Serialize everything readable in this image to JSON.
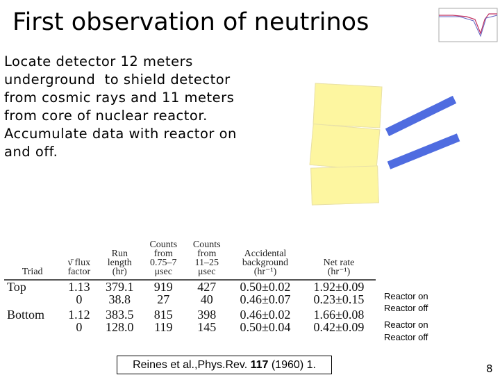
{
  "slide": {
    "title": "First observation of neutrinos",
    "body_lines": [
      "Locate detector 12 meters",
      "underground  to shield detector",
      "from cosmic rays and 11 meters",
      "from core of nuclear reactor.",
      "Accumulate data with reactor on",
      "and off."
    ],
    "table": {
      "headers": [
        "Triad",
        "ν̄ flux\nfactor",
        "Run\nlength\n(hr)",
        "Counts\nfrom\n0.75–7\nμsec",
        "Counts\nfrom\n11–25\nμsec",
        "Accidental\nbackground\n(hr⁻¹)",
        "Net rate\n(hr⁻¹)"
      ],
      "rows": [
        {
          "triad": "Top",
          "cells": [
            "1.13",
            "379.1",
            "919",
            "427",
            "0.50±0.02",
            "1.92±0.09"
          ]
        },
        {
          "cells": [
            "0",
            "38.8",
            "27",
            "40",
            "0.46±0.07",
            "0.23±0.15"
          ]
        },
        {
          "triad": "Bottom",
          "cells": [
            "1.12",
            "383.5",
            "815",
            "398",
            "0.46±0.02",
            "1.66±0.08"
          ]
        },
        {
          "cells": [
            "0",
            "128.0",
            "119",
            "145",
            "0.50±0.04",
            "0.42±0.09"
          ]
        }
      ]
    },
    "reactor_labels": [
      "Reactor on",
      "Reactor off",
      "Reactor on",
      "Reactor off"
    ],
    "citation": {
      "before": "Reines et al.,Phys.Rev.",
      "volume": "117",
      "after": "(1960) 1."
    },
    "page_number": "8"
  }
}
